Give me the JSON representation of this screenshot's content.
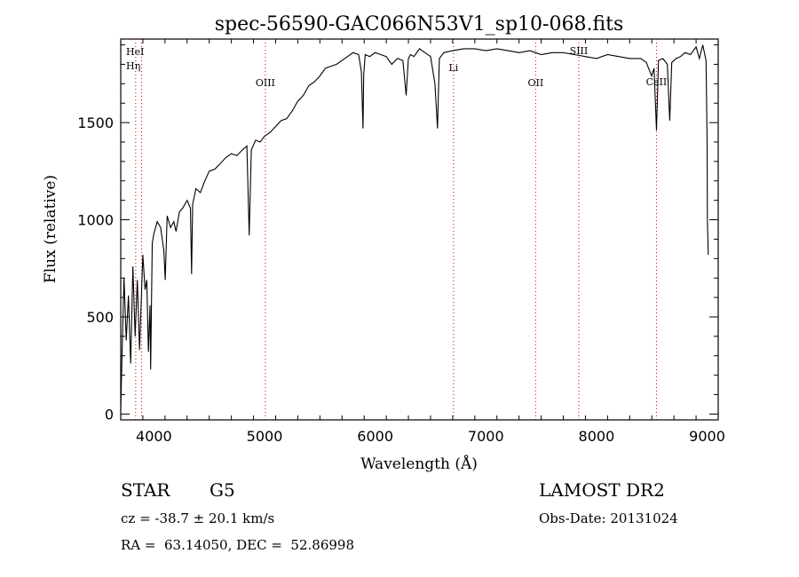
{
  "chart_data": {
    "type": "line",
    "title": "spec-56590-GAC066N53V1_sp10-068.fits",
    "xlabel": "Wavelength (Å)",
    "ylabel": "Flux (relative)",
    "xlim": [
      3700,
      9100
    ],
    "ylim": [
      -30,
      1930
    ],
    "x_ticks": [
      4000,
      5000,
      6000,
      7000,
      8000,
      9000
    ],
    "y_ticks": [
      0,
      500,
      1000,
      1500
    ],
    "x_tick_labels": [
      "4000",
      "5000",
      "6000",
      "7000",
      "8000",
      "9000"
    ],
    "y_tick_labels": [
      "0",
      "500",
      "1000",
      "1500"
    ],
    "grid": false,
    "series": [
      {
        "color": "#000000",
        "x": [
          3700,
          3710,
          3730,
          3750,
          3770,
          3790,
          3810,
          3830,
          3850,
          3870,
          3900,
          3920,
          3935,
          3950,
          3965,
          3970,
          3985,
          4000,
          4030,
          4060,
          4090,
          4102,
          4120,
          4150,
          4180,
          4200,
          4230,
          4260,
          4300,
          4330,
          4340,
          4350,
          4380,
          4420,
          4460,
          4500,
          4550,
          4600,
          4650,
          4700,
          4750,
          4800,
          4840,
          4861,
          4880,
          4920,
          4960,
          5000,
          5050,
          5100,
          5150,
          5200,
          5250,
          5300,
          5350,
          5400,
          5450,
          5500,
          5550,
          5600,
          5650,
          5700,
          5750,
          5800,
          5850,
          5875,
          5890,
          5896,
          5910,
          5950,
          6000,
          6050,
          6100,
          6150,
          6200,
          6250,
          6280,
          6300,
          6320,
          6350,
          6400,
          6450,
          6500,
          6540,
          6563,
          6580,
          6620,
          6700,
          6800,
          6900,
          7000,
          7100,
          7200,
          7300,
          7400,
          7500,
          7600,
          7700,
          7800,
          7900,
          8000,
          8100,
          8200,
          8300,
          8400,
          8450,
          8498,
          8520,
          8542,
          8560,
          8600,
          8640,
          8662,
          8680,
          8720,
          8760,
          8800,
          8850,
          8900,
          8930,
          8960,
          8990,
          9000,
          9002,
          9010
        ],
        "y": [
          20,
          260,
          700,
          380,
          610,
          260,
          760,
          400,
          690,
          330,
          820,
          640,
          690,
          320,
          560,
          230,
          880,
          930,
          990,
          960,
          840,
          690,
          1020,
          960,
          990,
          940,
          1040,
          1060,
          1100,
          1060,
          720,
          1080,
          1160,
          1140,
          1200,
          1250,
          1260,
          1290,
          1320,
          1340,
          1330,
          1360,
          1380,
          920,
          1360,
          1410,
          1400,
          1430,
          1450,
          1480,
          1510,
          1520,
          1560,
          1610,
          1640,
          1690,
          1710,
          1740,
          1780,
          1790,
          1800,
          1820,
          1840,
          1860,
          1850,
          1760,
          1470,
          1750,
          1850,
          1840,
          1860,
          1850,
          1840,
          1800,
          1830,
          1820,
          1640,
          1830,
          1850,
          1840,
          1880,
          1860,
          1840,
          1700,
          1470,
          1830,
          1860,
          1870,
          1880,
          1880,
          1870,
          1880,
          1870,
          1860,
          1870,
          1850,
          1860,
          1860,
          1850,
          1840,
          1830,
          1850,
          1840,
          1830,
          1830,
          1810,
          1740,
          1780,
          1460,
          1820,
          1830,
          1800,
          1510,
          1810,
          1830,
          1840,
          1860,
          1850,
          1890,
          1830,
          1900,
          1820,
          1400,
          1000,
          820
        ]
      }
    ],
    "line_markers": [
      {
        "label": "HeI",
        "x": 3889,
        "color": "#cc0000"
      },
      {
        "label": "Hη",
        "x": 3835,
        "color": "#cc0000"
      },
      {
        "label": "OIII",
        "x": 5007,
        "color": "#cc0000"
      },
      {
        "label": "Li",
        "x": 6708,
        "color": "#cc0000"
      },
      {
        "label": "OII",
        "x": 7450,
        "color": "#cc0000"
      },
      {
        "label": "SIII",
        "x": 7840,
        "color": "#cc0000"
      },
      {
        "label": "CaII",
        "x": 8542,
        "color": "#cc0000"
      }
    ]
  },
  "info": {
    "object_class": "STAR",
    "subclass": "G5",
    "survey": "LAMOST DR2",
    "cz": "cz = -38.7 ± 20.1 km/s",
    "obs_date": "Obs-Date: 20131024",
    "coords": "RA =  63.14050, DEC =  52.86998"
  }
}
